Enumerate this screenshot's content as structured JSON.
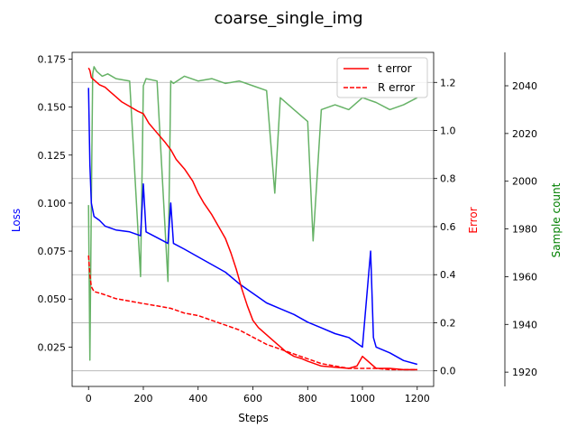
{
  "chart_data": {
    "type": "line",
    "title": "coarse_single_img",
    "xlabel": "Steps",
    "grid": "horizontal lines on Error axis",
    "legend_placement": "top-right",
    "axes": {
      "x": {
        "label": "Steps",
        "lim": [
          -60,
          1260
        ],
        "ticks": [
          0,
          200,
          400,
          600,
          800,
          1000,
          1200
        ]
      },
      "loss": {
        "label": "Loss",
        "color": "#0000ff",
        "lim": [
          0.0045,
          0.1785
        ],
        "ticks": [
          0.025,
          0.05,
          0.075,
          0.1,
          0.125,
          0.15,
          0.175
        ],
        "tick_labels": [
          "0.025",
          "0.050",
          "0.075",
          "0.100",
          "0.125",
          "0.150",
          "0.175"
        ]
      },
      "error": {
        "label": "Error",
        "color": "#ff0000",
        "lim": [
          -0.065,
          1.325
        ],
        "ticks": [
          0.0,
          0.2,
          0.4,
          0.6,
          0.8,
          1.0,
          1.2
        ],
        "tick_labels": [
          "0.0",
          "0.2",
          "0.4",
          "0.6",
          "0.8",
          "1.0",
          "1.2"
        ]
      },
      "sample_count": {
        "label": "Sample count",
        "color": "#008000",
        "lim": [
          1914,
          2054
        ],
        "ticks": [
          1920,
          1940,
          1960,
          1980,
          2000,
          2020,
          2040
        ],
        "tick_labels": [
          "1920",
          "1940",
          "1960",
          "1980",
          "2000",
          "2020",
          "2040"
        ]
      }
    },
    "series": [
      {
        "name": "t error",
        "axis": "error",
        "color": "#ff0000",
        "style": "solid",
        "x": [
          0,
          5,
          10,
          20,
          40,
          60,
          80,
          100,
          120,
          150,
          180,
          200,
          220,
          250,
          280,
          300,
          320,
          350,
          380,
          400,
          420,
          450,
          480,
          500,
          520,
          540,
          560,
          580,
          600,
          620,
          650,
          680,
          700,
          720,
          750,
          780,
          800,
          850,
          900,
          950,
          980,
          1000,
          1050,
          1100,
          1150,
          1200
        ],
        "y": [
          1.26,
          1.25,
          1.22,
          1.21,
          1.19,
          1.18,
          1.16,
          1.14,
          1.12,
          1.1,
          1.08,
          1.07,
          1.03,
          0.99,
          0.95,
          0.92,
          0.88,
          0.84,
          0.79,
          0.74,
          0.7,
          0.65,
          0.59,
          0.55,
          0.49,
          0.42,
          0.34,
          0.27,
          0.21,
          0.18,
          0.15,
          0.12,
          0.1,
          0.08,
          0.06,
          0.05,
          0.04,
          0.02,
          0.015,
          0.01,
          0.02,
          0.06,
          0.01,
          0.01,
          0.005,
          0.005
        ]
      },
      {
        "name": "R error",
        "axis": "error",
        "color": "#ff0000",
        "style": "dashed",
        "x": [
          0,
          5,
          10,
          20,
          50,
          100,
          150,
          200,
          250,
          300,
          350,
          400,
          450,
          500,
          550,
          600,
          650,
          700,
          750,
          800,
          850,
          900,
          950,
          1000,
          1050,
          1100,
          1150,
          1200
        ],
        "y": [
          0.48,
          0.4,
          0.35,
          0.33,
          0.32,
          0.3,
          0.29,
          0.28,
          0.27,
          0.26,
          0.24,
          0.23,
          0.21,
          0.19,
          0.17,
          0.14,
          0.11,
          0.09,
          0.07,
          0.05,
          0.03,
          0.02,
          0.01,
          0.01,
          0.01,
          0.005,
          0.005,
          0.005
        ]
      },
      {
        "axis": "loss",
        "color": "#0000ff",
        "style": "solid",
        "x": [
          0,
          5,
          10,
          20,
          40,
          60,
          80,
          100,
          150,
          190,
          200,
          210,
          250,
          290,
          300,
          310,
          350,
          400,
          450,
          500,
          550,
          600,
          650,
          700,
          750,
          800,
          850,
          900,
          950,
          1000,
          1030,
          1040,
          1050,
          1100,
          1150,
          1200
        ],
        "y": [
          0.16,
          0.12,
          0.1,
          0.093,
          0.091,
          0.088,
          0.087,
          0.086,
          0.085,
          0.083,
          0.11,
          0.085,
          0.082,
          0.079,
          0.1,
          0.079,
          0.076,
          0.072,
          0.068,
          0.064,
          0.058,
          0.053,
          0.048,
          0.045,
          0.042,
          0.038,
          0.035,
          0.032,
          0.03,
          0.025,
          0.075,
          0.03,
          0.025,
          0.022,
          0.018,
          0.016
        ]
      },
      {
        "axis": "sample_count",
        "color": "#66b266",
        "style": "solid",
        "x": [
          0,
          5,
          10,
          15,
          20,
          30,
          50,
          70,
          100,
          150,
          190,
          200,
          210,
          250,
          290,
          300,
          310,
          350,
          400,
          450,
          500,
          550,
          600,
          650,
          680,
          700,
          750,
          800,
          820,
          850,
          900,
          950,
          1000,
          1050,
          1100,
          1150,
          1200
        ],
        "y": [
          1990,
          1925,
          1990,
          2045,
          2048,
          2046,
          2044,
          2045,
          2043,
          2042,
          1960,
          2040,
          2043,
          2042,
          1958,
          2042,
          2041,
          2044,
          2042,
          2043,
          2041,
          2042,
          2040,
          2038,
          1995,
          2035,
          2030,
          2025,
          1975,
          2030,
          2032,
          2030,
          2035,
          2033,
          2030,
          2032,
          2035
        ]
      }
    ]
  }
}
